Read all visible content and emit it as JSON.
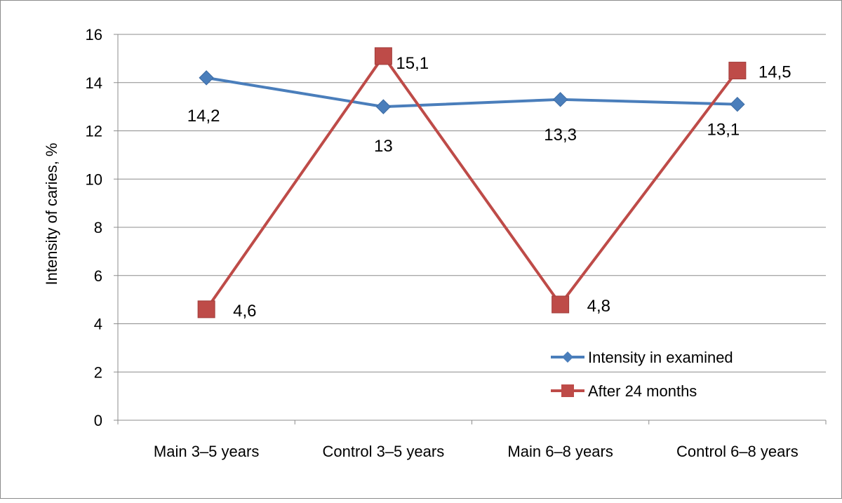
{
  "chart_data": {
    "type": "line",
    "title": "",
    "xlabel": "",
    "ylabel": "Intensity of caries, %",
    "ylim": [
      0,
      16
    ],
    "yticks": [
      0,
      2,
      4,
      6,
      8,
      10,
      12,
      14,
      16
    ],
    "grid": true,
    "legend_position": "bottom-right",
    "categories": [
      "Main 3–5 years",
      "Control 3–5 years",
      "Main 6–8 years",
      "Control 6–8 years"
    ],
    "series": [
      {
        "name": "Intensity in examined",
        "color": "#4a7ebb",
        "marker": "diamond",
        "values": [
          14.2,
          13,
          13.3,
          13.1
        ],
        "labels": [
          "14,2",
          "13",
          "13,3",
          "13,1"
        ]
      },
      {
        "name": "After 24 months",
        "color": "#be4b48",
        "marker": "square",
        "values": [
          4.6,
          15.1,
          4.8,
          14.5
        ],
        "labels": [
          "4,6",
          "15,1",
          "4,8",
          "14,5"
        ]
      }
    ]
  }
}
